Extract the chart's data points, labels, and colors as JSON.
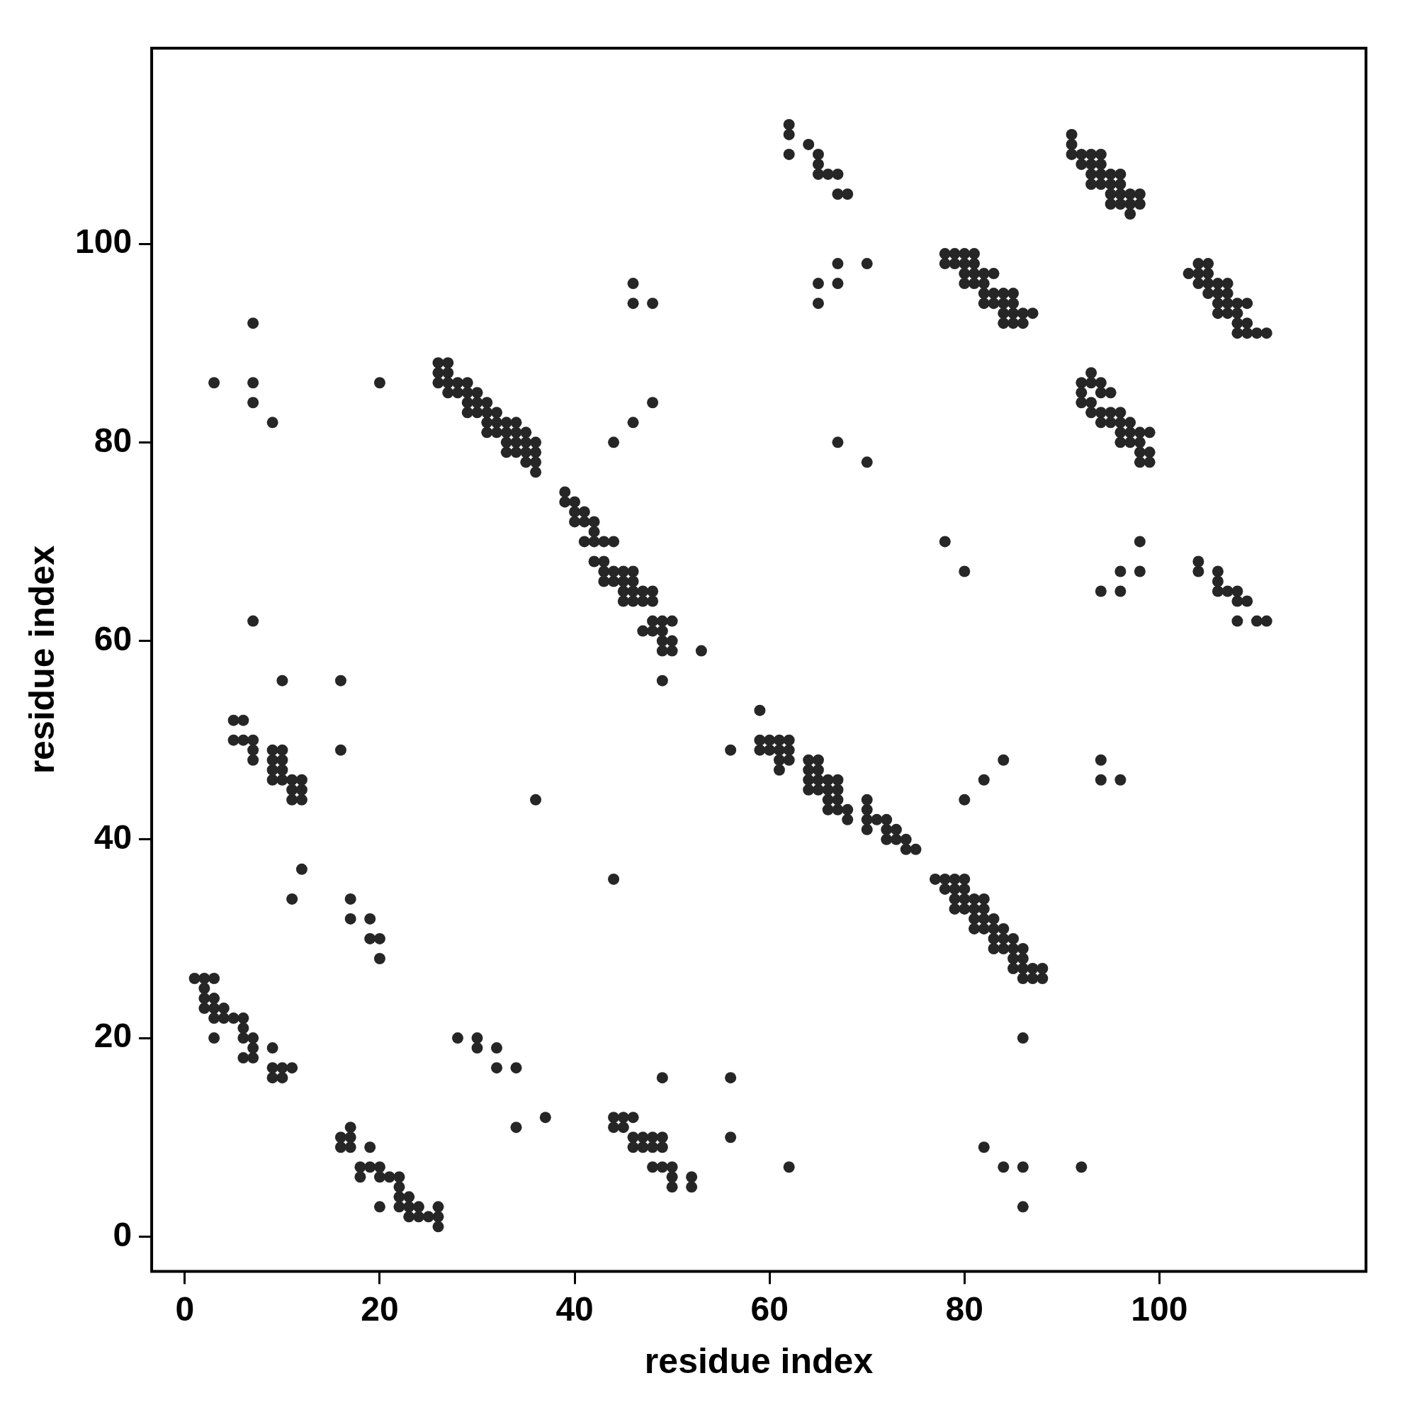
{
  "chart_data": {
    "type": "scatter",
    "xlabel": "residue index",
    "ylabel": "residue index",
    "xlim": [
      -3.4,
      121.2
    ],
    "ylim": [
      -3.5,
      119.7
    ],
    "xticks": [
      0,
      20,
      40,
      60,
      80,
      100
    ],
    "yticks": [
      0,
      20,
      40,
      60,
      80,
      100
    ],
    "grid": false,
    "legend": false,
    "marker": "circle",
    "series": [
      {
        "color": "#262626",
        "x": [
          1,
          2,
          3,
          2,
          2,
          3,
          2,
          3,
          4,
          3,
          4,
          5,
          6,
          3,
          6,
          7,
          6,
          7,
          6,
          7,
          9,
          9,
          10,
          11,
          9,
          10,
          16,
          17,
          17,
          16,
          17,
          19,
          18,
          19,
          20,
          18,
          20,
          21,
          22,
          22,
          22,
          20,
          22,
          23,
          23,
          24,
          23,
          24,
          25,
          26,
          26,
          26,
          44,
          45,
          46,
          44,
          45,
          46,
          46,
          47,
          47,
          48,
          48,
          49,
          49,
          48,
          49,
          50,
          50,
          50,
          52,
          52,
          28,
          30,
          30,
          32,
          32,
          34,
          34,
          37,
          49,
          56,
          56,
          62,
          82,
          84,
          86,
          86,
          86,
          92,
          5,
          6,
          5,
          6,
          7,
          7,
          7,
          9,
          10,
          9,
          10,
          9,
          9,
          10,
          10,
          11,
          12,
          11,
          12,
          11,
          12,
          10,
          16,
          16,
          12,
          11,
          17,
          17,
          19,
          19,
          20,
          20,
          36,
          44,
          3,
          7,
          7,
          7,
          9,
          20,
          7,
          26,
          27,
          26,
          27,
          26,
          27,
          28,
          29,
          27,
          28,
          29,
          30,
          29,
          30,
          31,
          29,
          30,
          31,
          32,
          31,
          32,
          33,
          34,
          31,
          32,
          33,
          34,
          35,
          33,
          34,
          35,
          36,
          33,
          34,
          35,
          36,
          35,
          36,
          36,
          39,
          39,
          40,
          40,
          41,
          40,
          41,
          42,
          42,
          41,
          42,
          43,
          44,
          42,
          43,
          43,
          44,
          45,
          46,
          43,
          44,
          45,
          46,
          45,
          46,
          47,
          48,
          45,
          46,
          47,
          48,
          47,
          48,
          48,
          49,
          50,
          49,
          49,
          50,
          49,
          50,
          53,
          49,
          46,
          46,
          48,
          48,
          46,
          44,
          59,
          59,
          60,
          61,
          62,
          59,
          60,
          61,
          62,
          61,
          62,
          61,
          64,
          65,
          64,
          65,
          64,
          65,
          66,
          67,
          64,
          65,
          66,
          67,
          66,
          67,
          66,
          67,
          68,
          68,
          70,
          70,
          70,
          70,
          71,
          72,
          72,
          73,
          72,
          73,
          74,
          74,
          75,
          56,
          77,
          78,
          79,
          80,
          78,
          79,
          80,
          79,
          80,
          81,
          82,
          79,
          80,
          81,
          82,
          81,
          82,
          83,
          81,
          82,
          83,
          84,
          83,
          84,
          85,
          83,
          84,
          85,
          86,
          85,
          86,
          85,
          86,
          87,
          88,
          86,
          87,
          88,
          80,
          82,
          84,
          94,
          94,
          96,
          62,
          62,
          62,
          64,
          65,
          65,
          65,
          66,
          67,
          67,
          68,
          65,
          65,
          67,
          67,
          70,
          67,
          70,
          78,
          80,
          78,
          79,
          80,
          81,
          78,
          79,
          80,
          81,
          80,
          81,
          82,
          83,
          80,
          81,
          82,
          82,
          83,
          84,
          85,
          82,
          83,
          84,
          85,
          84,
          85,
          86,
          87,
          84,
          85,
          86,
          91,
          91,
          91,
          92,
          93,
          94,
          92,
          93,
          94,
          93,
          94,
          95,
          96,
          93,
          94,
          95,
          96,
          95,
          96,
          97,
          98,
          95,
          96,
          97,
          98,
          97,
          103,
          104,
          105,
          104,
          105,
          104,
          105,
          106,
          107,
          105,
          106,
          107,
          106,
          107,
          108,
          109,
          106,
          107,
          108,
          108,
          109,
          108,
          109,
          110,
          111,
          92,
          93,
          92,
          93,
          94,
          92,
          93,
          94,
          95,
          93,
          94,
          95,
          96,
          94,
          95,
          96,
          97,
          96,
          97,
          98,
          99,
          96,
          97,
          98,
          99,
          98,
          98,
          99,
          94,
          96,
          96,
          98,
          98,
          104,
          104,
          106,
          106,
          106,
          107,
          108,
          108,
          109,
          108,
          110,
          111
        ],
        "values": [
          26,
          26,
          26,
          25,
          24,
          24,
          23,
          23,
          23,
          22,
          22,
          22,
          22,
          20,
          21,
          20,
          20,
          19,
          18,
          18,
          19,
          17,
          17,
          17,
          16,
          16,
          10,
          11,
          10,
          9,
          9,
          9,
          7,
          7,
          7,
          6,
          6,
          6,
          6,
          5,
          4,
          3,
          3,
          3,
          4,
          3,
          2,
          2,
          2,
          3,
          2,
          1,
          12,
          12,
          12,
          11,
          11,
          10,
          9,
          9,
          10,
          10,
          9,
          10,
          9,
          7,
          7,
          7,
          6,
          5,
          6,
          5,
          20,
          20,
          19,
          19,
          17,
          17,
          11,
          12,
          16,
          16,
          10,
          7,
          9,
          7,
          7,
          3,
          20,
          7,
          52,
          52,
          50,
          50,
          50,
          49,
          48,
          49,
          49,
          48,
          48,
          47,
          46,
          47,
          46,
          46,
          46,
          45,
          45,
          44,
          44,
          56,
          56,
          49,
          37,
          34,
          34,
          32,
          32,
          30,
          30,
          28,
          44,
          36,
          86,
          92,
          86,
          84,
          82,
          86,
          62,
          88,
          88,
          87,
          87,
          86,
          86,
          86,
          86,
          85,
          85,
          85,
          85,
          84,
          84,
          84,
          83,
          83,
          83,
          83,
          82,
          82,
          82,
          82,
          81,
          81,
          81,
          81,
          81,
          80,
          80,
          80,
          80,
          79,
          79,
          79,
          79,
          78,
          78,
          77,
          75,
          74,
          74,
          73,
          73,
          72,
          72,
          72,
          71,
          70,
          70,
          70,
          70,
          68,
          68,
          67,
          67,
          67,
          67,
          66,
          66,
          66,
          66,
          65,
          65,
          65,
          65,
          64,
          64,
          64,
          64,
          61,
          61,
          62,
          62,
          62,
          61,
          60,
          60,
          59,
          59,
          59,
          56,
          96,
          94,
          94,
          84,
          82,
          80,
          53,
          50,
          50,
          50,
          50,
          49,
          49,
          49,
          49,
          48,
          48,
          47,
          48,
          48,
          47,
          47,
          46,
          46,
          46,
          46,
          45,
          45,
          45,
          45,
          44,
          44,
          43,
          43,
          43,
          42,
          44,
          43,
          42,
          41,
          42,
          42,
          41,
          41,
          40,
          40,
          40,
          39,
          39,
          49,
          36,
          36,
          36,
          36,
          35,
          35,
          35,
          34,
          34,
          34,
          34,
          33,
          33,
          33,
          33,
          32,
          32,
          32,
          31,
          31,
          31,
          31,
          30,
          30,
          30,
          29,
          29,
          29,
          29,
          28,
          28,
          27,
          27,
          27,
          27,
          26,
          26,
          26,
          44,
          46,
          48,
          48,
          46,
          46,
          112,
          111,
          109,
          110,
          109,
          108,
          107,
          107,
          107,
          105,
          105,
          96,
          94,
          96,
          98,
          98,
          80,
          78,
          70,
          67,
          99,
          99,
          99,
          99,
          98,
          98,
          98,
          98,
          97,
          97,
          97,
          97,
          96,
          96,
          96,
          95,
          95,
          95,
          95,
          94,
          94,
          94,
          94,
          93,
          93,
          93,
          93,
          92,
          92,
          92,
          111,
          110,
          109,
          109,
          109,
          109,
          108,
          108,
          108,
          107,
          107,
          107,
          107,
          106,
          106,
          106,
          106,
          105,
          105,
          105,
          105,
          104,
          104,
          104,
          104,
          103,
          97,
          98,
          98,
          97,
          97,
          96,
          96,
          96,
          96,
          95,
          95,
          95,
          94,
          94,
          94,
          94,
          93,
          93,
          93,
          92,
          92,
          91,
          91,
          91,
          91,
          86,
          87,
          85,
          86,
          86,
          84,
          84,
          85,
          85,
          83,
          83,
          83,
          83,
          82,
          82,
          82,
          82,
          81,
          81,
          81,
          81,
          80,
          80,
          80,
          79,
          79,
          78,
          78,
          65,
          65,
          67,
          70,
          67,
          68,
          67,
          67,
          66,
          65,
          65,
          65,
          64,
          64,
          62,
          62,
          62
        ]
      }
    ]
  }
}
